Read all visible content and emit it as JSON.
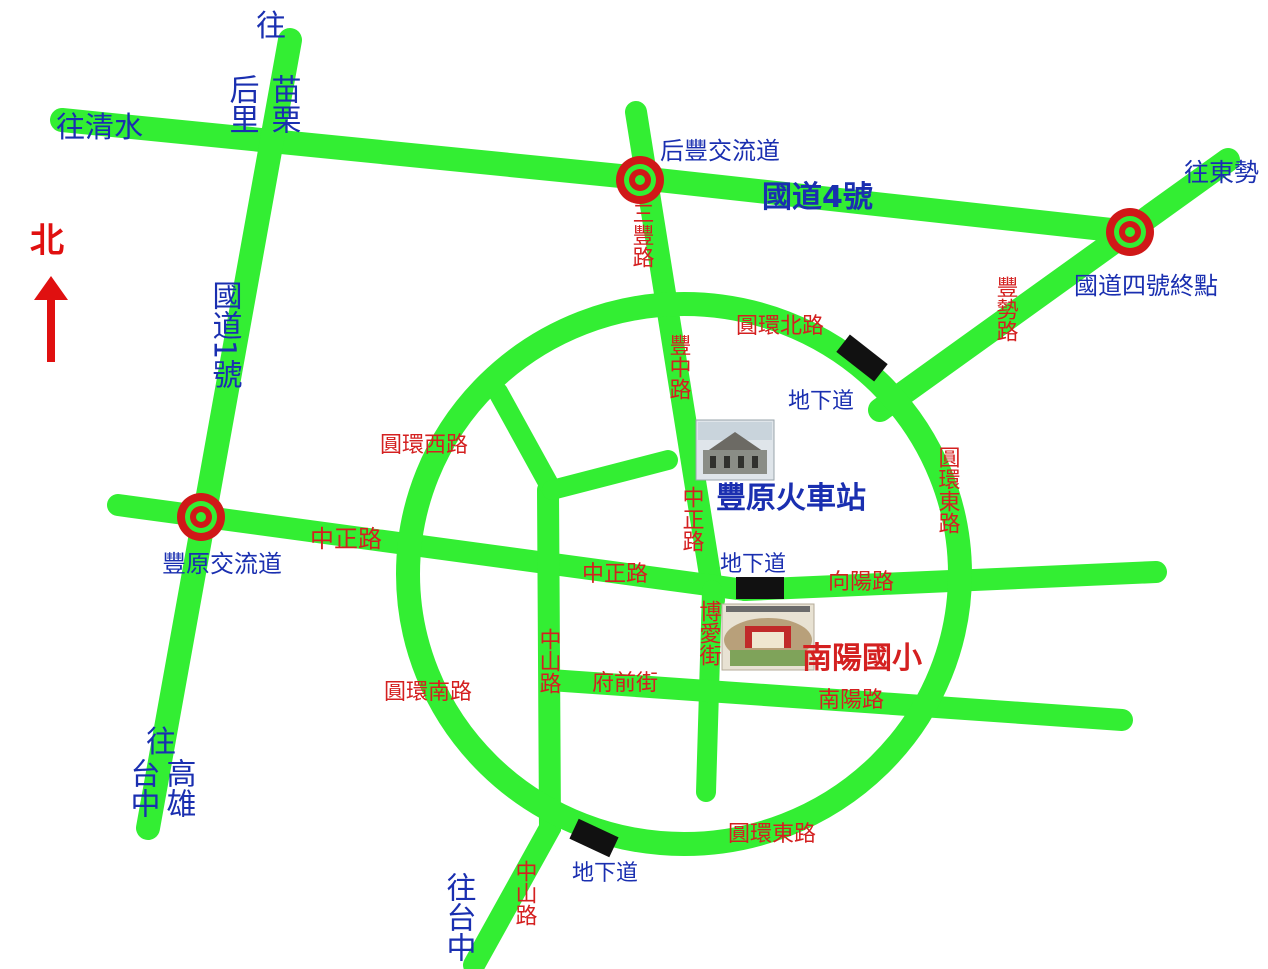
{
  "north": {
    "label": "北",
    "color": "#e01010"
  },
  "colors": {
    "road": "#33ee33",
    "blue_text": "#1a2fb0",
    "red_text": "#d42020",
    "interchange": "#d01818",
    "underpass": "#111111"
  },
  "directions": {
    "qingshui": "往清水",
    "houli_miaoli_top": "往",
    "houli_miaoli_col1": "后里",
    "houli_miaoli_col2": "苗栗",
    "dongshi": "往東勢",
    "taichung_kaohsiung_top": "往",
    "taichung_kaohsiung_col1": "台中",
    "taichung_kaohsiung_col2": "高雄",
    "taichung_bottom": "往台中"
  },
  "highways": {
    "national4": "國道4號",
    "national1": "國道1號",
    "national4_end": "國道四號終點"
  },
  "interchanges": {
    "houfeng": "后豐交流道",
    "fengyuan": "豐原交流道"
  },
  "roads": {
    "sanfeng": "三豐路",
    "fengzhong": "豐中路",
    "fengshi": "豐勢路",
    "huanbei": "圓環北路",
    "huanxi": "圓環西路",
    "huandong_right": "圓環東路",
    "zhongzheng_left": "中正路",
    "zhongzheng_mid": "中正路",
    "zhongzheng_vertical": "中正路",
    "xiangyang": "向陽路",
    "boai": "博愛街",
    "zhongshan_mid": "中山路",
    "fuqian": "府前街",
    "nanyang_road": "南陽路",
    "huannan": "圓環南路",
    "huandong_bottom": "圓環東路",
    "zhongshan_bottom": "中山路"
  },
  "underpasses": {
    "north": "地下道",
    "center": "地下道",
    "south": "地下道"
  },
  "landmarks": {
    "station": "豐原火車站",
    "school": "南陽國小"
  }
}
